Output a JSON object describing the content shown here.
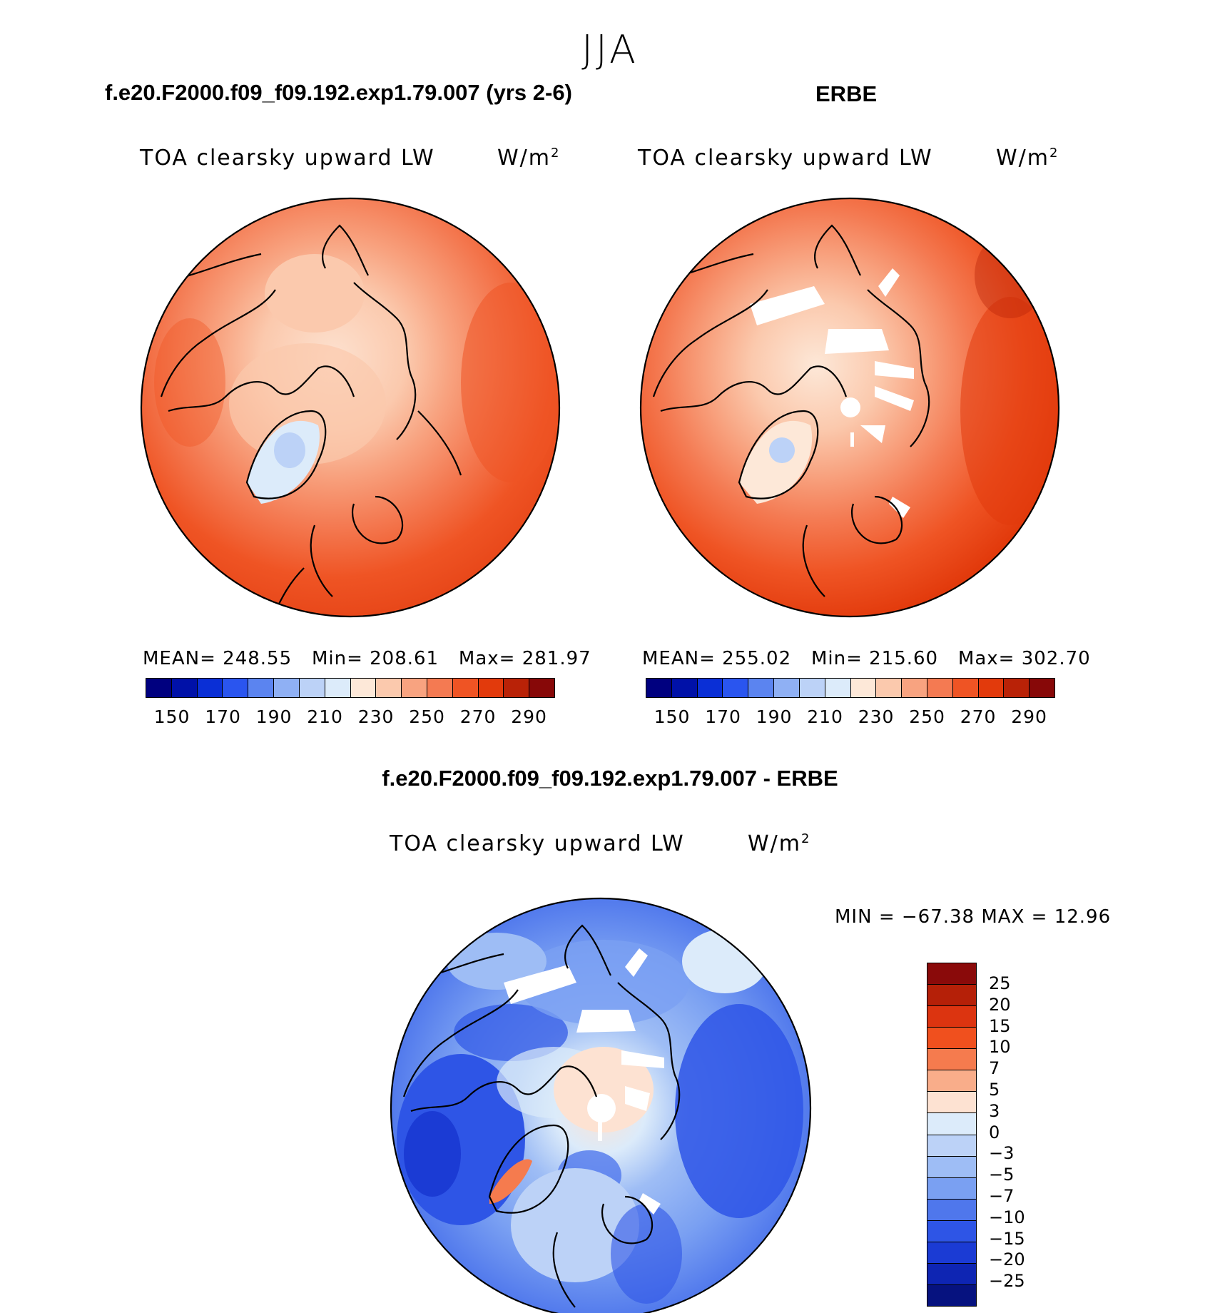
{
  "season": "JJA",
  "panels": [
    {
      "case": "f.e20.F2000.f09_f09.192.exp1.79.007 (yrs 2-6)",
      "variable": "TOA clearsky upward LW",
      "units": "W/m",
      "units_sup": "2",
      "stats": {
        "mean": "248.55",
        "min": "208.61",
        "max": "281.97"
      }
    },
    {
      "case": "ERBE",
      "variable": "TOA clearsky upward LW",
      "units": "W/m",
      "units_sup": "2",
      "stats": {
        "mean": "255.02",
        "min": "215.60",
        "max": "302.70"
      }
    }
  ],
  "stat_labels": {
    "mean": "MEAN=",
    "min": "Min=",
    "max": "Max="
  },
  "abs_colorbar": {
    "tick_labels": [
      "150",
      "170",
      "190",
      "210",
      "230",
      "250",
      "270",
      "290"
    ],
    "colors": [
      "#00007f",
      "#0011a8",
      "#0a2fd6",
      "#2a55ef",
      "#5b84f0",
      "#8fb0f4",
      "#bcd2f7",
      "#dcebfa",
      "#fde8d8",
      "#fbc9ad",
      "#f8a380",
      "#f47a52",
      "#ef5424",
      "#e23a0c",
      "#b92207",
      "#870808"
    ]
  },
  "diff_panel": {
    "case": "f.e20.F2000.f09_f09.192.exp1.79.007 - ERBE",
    "variable": "TOA clearsky upward LW",
    "units": "W/m",
    "units_sup": "2",
    "minmax": "MIN = −67.38 MAX =   12.96",
    "colorbar_labels": [
      "25",
      "20",
      "15",
      "10",
      "7",
      "5",
      "3",
      "0",
      "−3",
      "−5",
      "−7",
      "−10",
      "−15",
      "−20",
      "−25"
    ],
    "colorbar_colors": [
      "#8a0a0a",
      "#b52008",
      "#dc3410",
      "#f0501e",
      "#f57b4e",
      "#f9ad8a",
      "#fde2d2",
      "#dcebfa",
      "#bcd2f7",
      "#9ebdf5",
      "#7aa0f2",
      "#4f77ec",
      "#2e55e6",
      "#1b3bd4",
      "#0e25b3",
      "#06127f"
    ]
  }
}
